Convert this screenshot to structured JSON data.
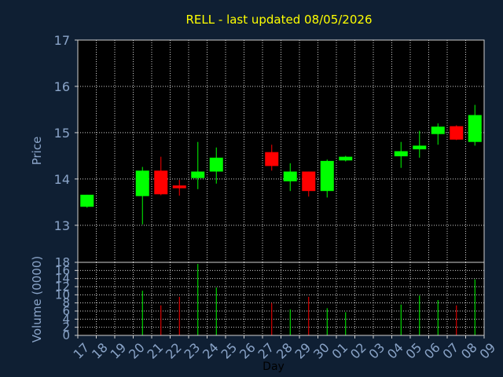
{
  "chart_data": {
    "type": "candlestick",
    "title": "RELL - last updated 08/05/2026",
    "price_axis": {
      "label": "Price",
      "ylim": [
        12.2,
        17
      ],
      "ticks": [
        13,
        14,
        15,
        16,
        17
      ]
    },
    "volume_axis": {
      "label": "Volume (0000)",
      "ylim": [
        0,
        18
      ],
      "ticks": [
        0,
        2,
        4,
        6,
        8,
        10,
        12,
        14,
        16,
        18
      ]
    },
    "xlabel": "Day",
    "x_ticks": [
      "17",
      "18",
      "19",
      "20",
      "21",
      "22",
      "23",
      "24",
      "25",
      "26",
      "27",
      "28",
      "29",
      "30",
      "01",
      "02",
      "03",
      "04",
      "05",
      "06",
      "07",
      "08",
      "09"
    ],
    "grid": true,
    "colors": {
      "background": "#0f1f33",
      "plot_bg": "#000000",
      "up": "#00ff00",
      "down": "#ff0000",
      "grid": "#d0d0d0",
      "text": "#8aa4c8",
      "title": "#ffff00"
    },
    "candles": [
      {
        "day": "17",
        "open": 13.4,
        "high": 13.66,
        "low": 13.38,
        "close": 13.66
      },
      {
        "day": "20",
        "open": 13.63,
        "high": 14.26,
        "low": 13.02,
        "close": 14.18
      },
      {
        "day": "21",
        "open": 14.18,
        "high": 14.48,
        "low": 13.65,
        "close": 13.67
      },
      {
        "day": "22",
        "open": 13.86,
        "high": 13.98,
        "low": 13.64,
        "close": 13.8
      },
      {
        "day": "23",
        "open": 14.02,
        "high": 14.8,
        "low": 13.78,
        "close": 14.16
      },
      {
        "day": "24",
        "open": 14.16,
        "high": 14.68,
        "low": 13.9,
        "close": 14.46
      },
      {
        "day": "27",
        "open": 14.58,
        "high": 14.74,
        "low": 14.18,
        "close": 14.28
      },
      {
        "day": "28",
        "open": 13.95,
        "high": 14.34,
        "low": 13.74,
        "close": 14.16
      },
      {
        "day": "29",
        "open": 14.16,
        "high": 14.16,
        "low": 13.62,
        "close": 13.74
      },
      {
        "day": "30",
        "open": 13.74,
        "high": 14.42,
        "low": 13.6,
        "close": 14.39
      },
      {
        "day": "01",
        "open": 14.4,
        "high": 14.5,
        "low": 14.38,
        "close": 14.48
      },
      {
        "day": "04",
        "open": 14.49,
        "high": 14.8,
        "low": 14.24,
        "close": 14.6
      },
      {
        "day": "05",
        "open": 14.64,
        "high": 15.04,
        "low": 14.46,
        "close": 14.72
      },
      {
        "day": "06",
        "open": 14.97,
        "high": 15.2,
        "low": 14.74,
        "close": 15.13
      },
      {
        "day": "07",
        "open": 15.14,
        "high": 15.16,
        "low": 14.84,
        "close": 14.85
      },
      {
        "day": "08",
        "open": 14.8,
        "high": 15.6,
        "low": 14.72,
        "close": 15.38
      }
    ],
    "volume": [
      {
        "day": "17",
        "value": 0
      },
      {
        "day": "20",
        "value": 11
      },
      {
        "day": "21",
        "value": 7.4
      },
      {
        "day": "22",
        "value": 9.5
      },
      {
        "day": "23",
        "value": 17.6
      },
      {
        "day": "24",
        "value": 11.8
      },
      {
        "day": "27",
        "value": 8.0
      },
      {
        "day": "28",
        "value": 6.4
      },
      {
        "day": "29",
        "value": 9.5
      },
      {
        "day": "30",
        "value": 6.7
      },
      {
        "day": "01",
        "value": 5.7
      },
      {
        "day": "04",
        "value": 7.6
      },
      {
        "day": "05",
        "value": 9.8
      },
      {
        "day": "06",
        "value": 8.7
      },
      {
        "day": "07",
        "value": 7.4
      },
      {
        "day": "08",
        "value": 13.8
      }
    ]
  }
}
